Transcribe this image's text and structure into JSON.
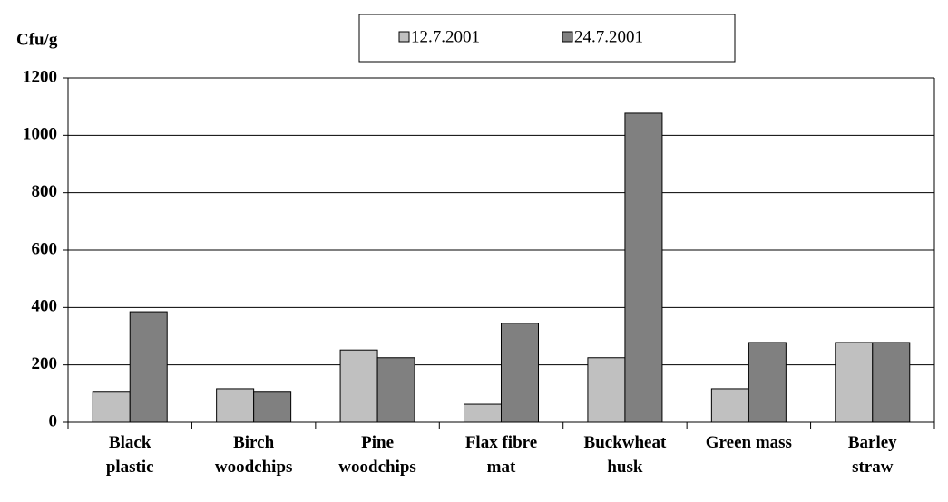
{
  "chart_data": {
    "type": "bar",
    "y_label": "Cfu/g",
    "categories": [
      "Black\nplastic",
      "Birch\nwoodchips",
      "Pine\nwoodchips",
      "Flax fibre\nmat",
      "Buckwheat\nhusk",
      "Green mass",
      "Barley\nstraw"
    ],
    "series": [
      {
        "name": "12.7.2001",
        "color": "#c0c0c0",
        "values": [
          105,
          117,
          252,
          63,
          225,
          117,
          278
        ]
      },
      {
        "name": "24.7.2001",
        "color": "#808080",
        "values": [
          385,
          105,
          225,
          345,
          1077,
          278,
          278
        ]
      }
    ],
    "ylim": [
      0,
      1200
    ],
    "yticks": [
      0,
      200,
      400,
      600,
      800,
      1000,
      1200
    ],
    "grid": true,
    "legend": "top"
  }
}
